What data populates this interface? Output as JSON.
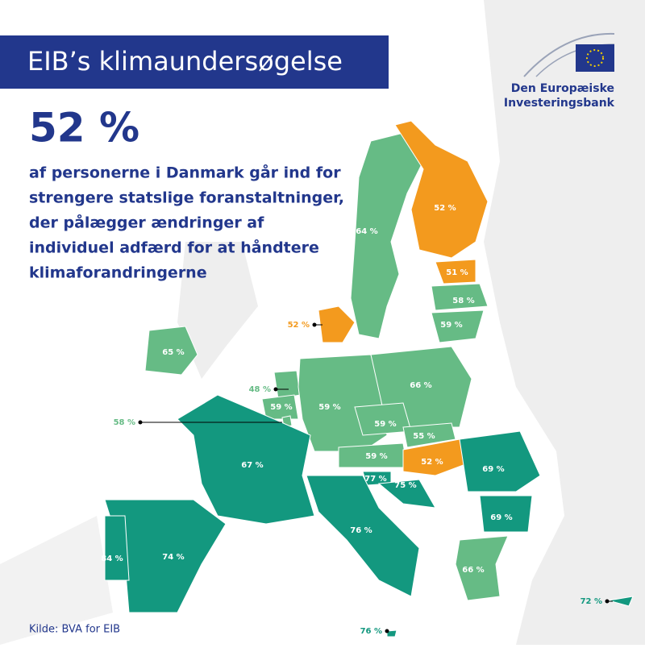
{
  "title": "EIB’s klimaundersøgelse",
  "logo": {
    "line1": "Den Europæiske",
    "line2": "Investeringsbank"
  },
  "headline": "52 %",
  "description": [
    "af personerne i Danmark går ind for",
    "strengere statslige foranstaltninger,",
    "der pålægger ændringer af",
    "individuel adfærd for at håndtere",
    "klimaforandringerne"
  ],
  "source": "Kilde: BVA for EIB",
  "regions": [
    {
      "label": "64 %",
      "color": "#66bb85"
    },
    {
      "label": "52 %",
      "color": "#f39a1e"
    },
    {
      "label": "51 %",
      "color": "#f39a1e"
    },
    {
      "label": "58 %",
      "color": "#66bb85"
    },
    {
      "label": "59 %",
      "color": "#66bb85"
    },
    {
      "label": "52 %",
      "color": "#f39a1e"
    },
    {
      "label": "65 %",
      "color": "#66bb85"
    },
    {
      "label": "48 %",
      "color": "#66bb85"
    },
    {
      "label": "59 %",
      "color": "#66bb85"
    },
    {
      "label": "58 %",
      "color": "#66bb85"
    },
    {
      "label": "59 %",
      "color": "#66bb85"
    },
    {
      "label": "66 %",
      "color": "#66bb85"
    },
    {
      "label": "59 %",
      "color": "#66bb85"
    },
    {
      "label": "55 %",
      "color": "#66bb85"
    },
    {
      "label": "59 %",
      "color": "#66bb85"
    },
    {
      "label": "52 %",
      "color": "#f39a1e"
    },
    {
      "label": "67 %",
      "color": "#13987f"
    },
    {
      "label": "77 %",
      "color": "#13987f"
    },
    {
      "label": "75 %",
      "color": "#13987f"
    },
    {
      "label": "69 %",
      "color": "#13987f"
    },
    {
      "label": "69 %",
      "color": "#13987f"
    },
    {
      "label": "76 %",
      "color": "#13987f"
    },
    {
      "label": "74 %",
      "color": "#13987f"
    },
    {
      "label": "84 %",
      "color": "#13987f"
    },
    {
      "label": "66 %",
      "color": "#66bb85"
    },
    {
      "label": "72 %",
      "color": "#13987f"
    },
    {
      "label": "76 %",
      "color": "#13987f"
    }
  ]
}
